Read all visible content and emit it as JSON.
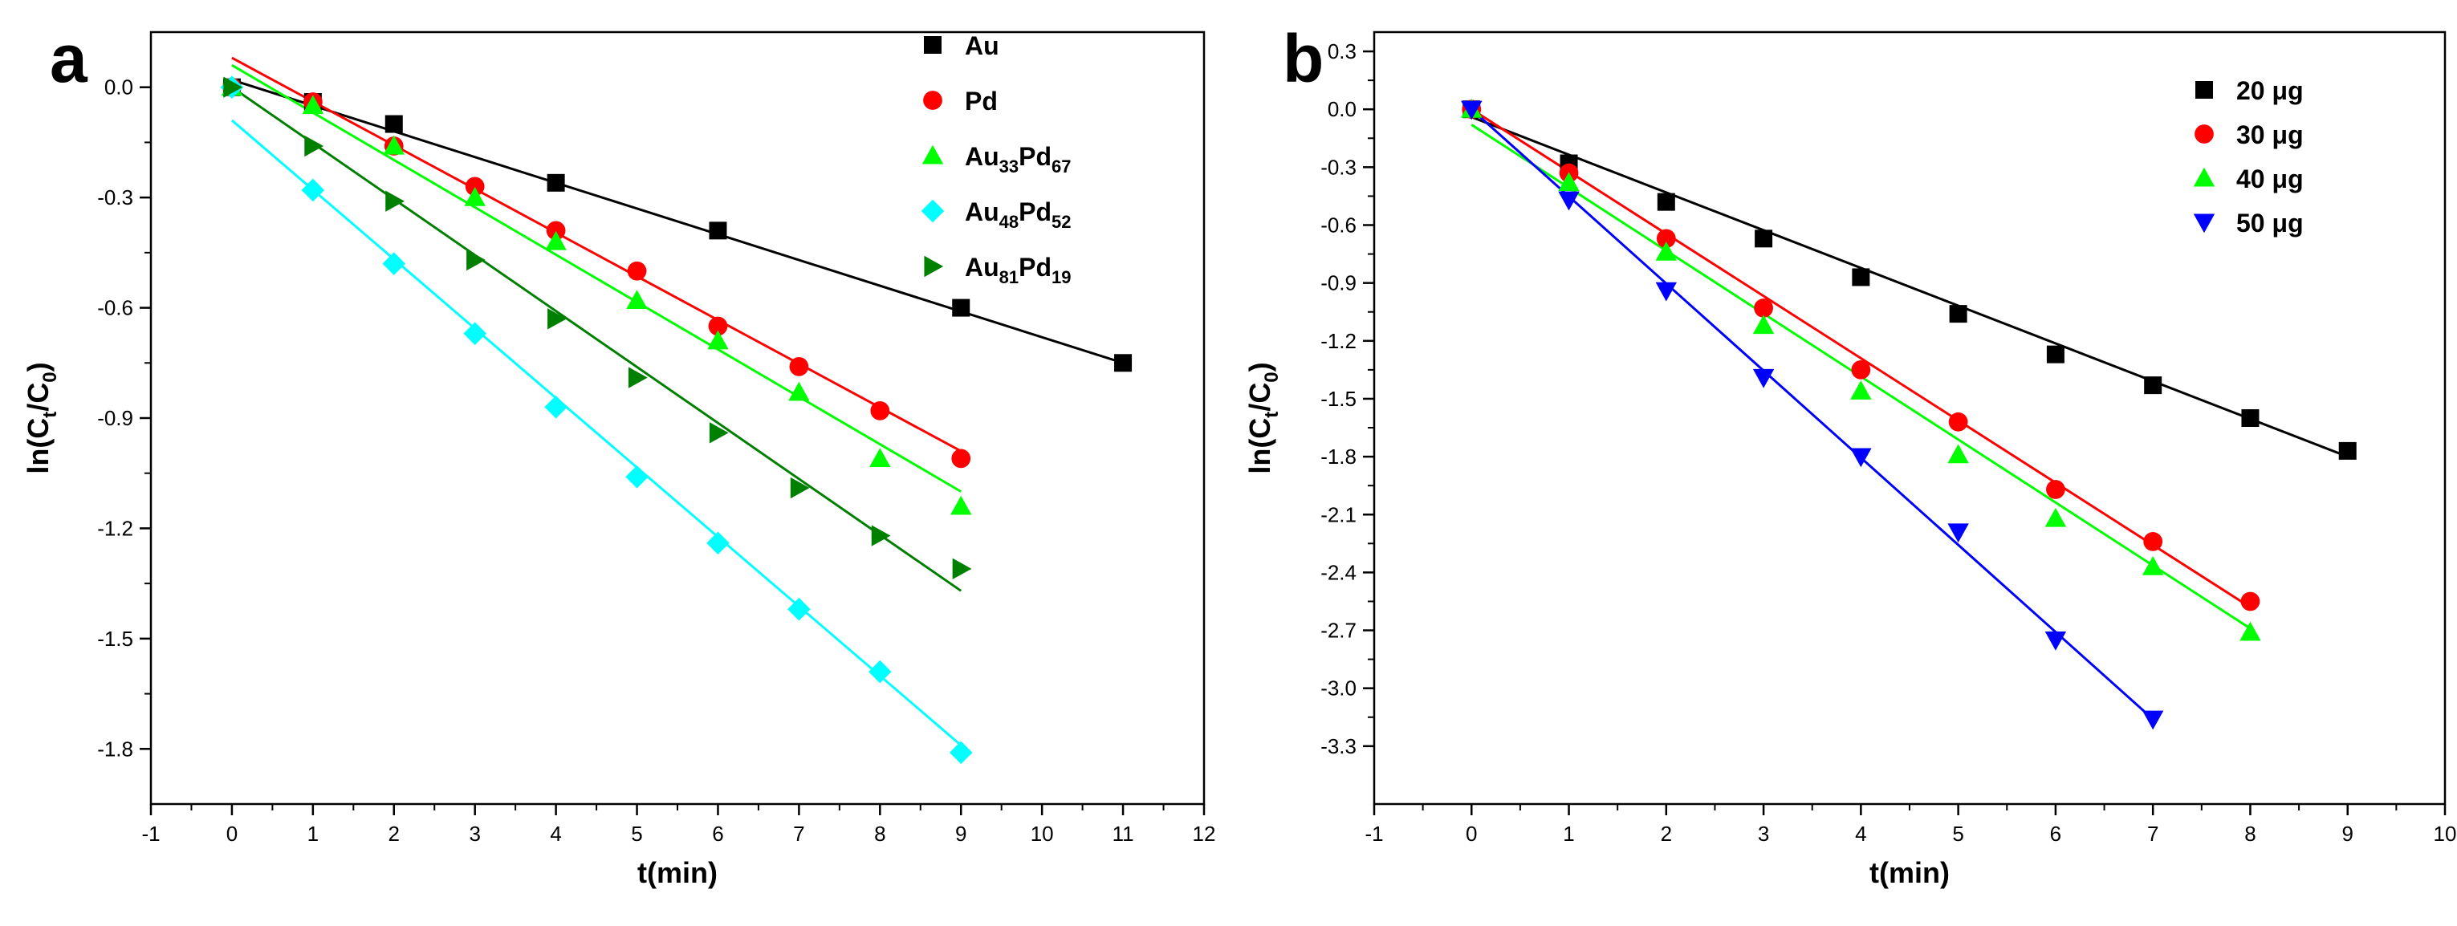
{
  "chart_data": [
    {
      "panel_label": "a",
      "type": "scatter",
      "xlabel": "t(min)",
      "ylabel": {
        "base": "ln(C",
        "sub1": "t",
        "mid": "/C",
        "sub2": "0",
        "end": ")"
      },
      "xlim": [
        -1,
        12
      ],
      "ylim": [
        -1.95,
        0.15
      ],
      "xticks": [
        -1,
        0,
        1,
        2,
        3,
        4,
        5,
        6,
        7,
        8,
        9,
        10,
        11,
        12
      ],
      "yticks": [
        0.0,
        -0.3,
        -0.6,
        -0.9,
        -1.2,
        -1.5,
        -1.8
      ],
      "ytick_labels": [
        "0.0",
        "-0.3",
        "-0.6",
        "-0.9",
        "-1.2",
        "-1.5",
        "-1.8"
      ],
      "legend_position": "top-right",
      "series": [
        {
          "name": "Au",
          "label_base": "Au",
          "marker": "square",
          "color": "#000000",
          "x": [
            0,
            1,
            2,
            4,
            6,
            9,
            11
          ],
          "y": [
            0.0,
            -0.04,
            -0.1,
            -0.26,
            -0.39,
            -0.6,
            -0.75
          ],
          "fit": {
            "x": [
              0,
              11
            ],
            "y": [
              0.02,
              -0.75
            ]
          }
        },
        {
          "name": "Pd",
          "label_base": "Pd",
          "marker": "circle",
          "color": "#ff0000",
          "x": [
            0,
            1,
            2,
            3,
            4,
            5,
            6,
            7,
            8,
            9
          ],
          "y": [
            0.0,
            -0.04,
            -0.16,
            -0.27,
            -0.39,
            -0.5,
            -0.65,
            -0.76,
            -0.88,
            -1.01
          ],
          "fit": {
            "x": [
              0,
              9
            ],
            "y": [
              0.08,
              -0.99
            ]
          }
        },
        {
          "name": "Au33Pd67",
          "label_base": "Au",
          "label_sub1": "33",
          "label_mid": "Pd",
          "label_sub2": "67",
          "marker": "triangle-up",
          "color": "#00ff00",
          "x": [
            0,
            1,
            2,
            3,
            4,
            5,
            6,
            7,
            8,
            9
          ],
          "y": [
            0.0,
            -0.05,
            -0.16,
            -0.3,
            -0.42,
            -0.58,
            -0.69,
            -0.83,
            -1.01,
            -1.14
          ],
          "fit": {
            "x": [
              0,
              9
            ],
            "y": [
              0.06,
              -1.1
            ]
          }
        },
        {
          "name": "Au48Pd52",
          "label_base": "Au",
          "label_sub1": "48",
          "label_mid": "Pd",
          "label_sub2": "52",
          "marker": "diamond",
          "color": "#00ffff",
          "x": [
            0,
            1,
            2,
            3,
            4,
            5,
            6,
            7,
            8,
            9
          ],
          "y": [
            0.0,
            -0.28,
            -0.48,
            -0.67,
            -0.87,
            -1.06,
            -1.24,
            -1.42,
            -1.59,
            -1.81
          ],
          "fit": {
            "x": [
              0,
              9
            ],
            "y": [
              -0.09,
              -1.79
            ]
          }
        },
        {
          "name": "Au81Pd19",
          "label_base": "Au",
          "label_sub1": "81",
          "label_mid": "Pd",
          "label_sub2": "19",
          "marker": "triangle-right",
          "color": "#008000",
          "x": [
            0,
            1,
            2,
            3,
            4,
            5,
            6,
            7,
            8,
            9
          ],
          "y": [
            0.0,
            -0.16,
            -0.31,
            -0.47,
            -0.63,
            -0.79,
            -0.94,
            -1.09,
            -1.22,
            -1.31
          ],
          "fit": {
            "x": [
              0,
              9
            ],
            "y": [
              0.0,
              -1.37
            ]
          }
        }
      ]
    },
    {
      "panel_label": "b",
      "type": "scatter",
      "xlabel": "t(min)",
      "ylabel": {
        "base": "ln(C",
        "sub1": "t",
        "mid": "/C",
        "sub2": "0",
        "end": ")"
      },
      "xlim": [
        -1,
        10
      ],
      "ylim": [
        -3.6,
        0.4
      ],
      "xticks": [
        -1,
        0,
        1,
        2,
        3,
        4,
        5,
        6,
        7,
        8,
        9,
        10
      ],
      "yticks": [
        0.3,
        0.0,
        -0.3,
        -0.6,
        -0.9,
        -1.2,
        -1.5,
        -1.8,
        -2.1,
        -2.4,
        -2.7,
        -3.0,
        -3.3
      ],
      "ytick_labels": [
        "0.3",
        "0.0",
        "-0.3",
        "-0.6",
        "-0.9",
        "-1.2",
        "-1.5",
        "-1.8",
        "-2.1",
        "-2.4",
        "-2.7",
        "-3.0",
        "-3.3"
      ],
      "legend_position": "top-right",
      "series": [
        {
          "name": "20 μg",
          "label_base": "20 μg",
          "marker": "square",
          "color": "#000000",
          "x": [
            0,
            1,
            2,
            3,
            4,
            5,
            6,
            7,
            8,
            9
          ],
          "y": [
            0.0,
            -0.28,
            -0.48,
            -0.67,
            -0.87,
            -1.06,
            -1.27,
            -1.43,
            -1.6,
            -1.77
          ],
          "fit": {
            "x": [
              0,
              9
            ],
            "y": [
              -0.04,
              -1.8
            ]
          }
        },
        {
          "name": "30 μg",
          "label_base": "30 μg",
          "marker": "circle",
          "color": "#ff0000",
          "x": [
            0,
            1,
            2,
            3,
            4,
            5,
            6,
            7,
            8
          ],
          "y": [
            0.0,
            -0.33,
            -0.67,
            -1.03,
            -1.35,
            -1.62,
            -1.97,
            -2.24,
            -2.55
          ],
          "fit": {
            "x": [
              0,
              8
            ],
            "y": [
              0.0,
              -2.58
            ]
          }
        },
        {
          "name": "40 μg",
          "label_base": "40 μg",
          "marker": "triangle-up",
          "color": "#00ff00",
          "x": [
            0,
            1,
            2,
            3,
            4,
            5,
            6,
            7,
            8
          ],
          "y": [
            0.0,
            -0.38,
            -0.74,
            -1.12,
            -1.46,
            -1.79,
            -2.12,
            -2.37,
            -2.71
          ],
          "fit": {
            "x": [
              0,
              8
            ],
            "y": [
              -0.08,
              -2.69
            ]
          }
        },
        {
          "name": "50 μg",
          "label_base": "50 μg",
          "marker": "triangle-down",
          "color": "#0000ff",
          "x": [
            0,
            1,
            2,
            3,
            4,
            5,
            6,
            7
          ],
          "y": [
            0.0,
            -0.47,
            -0.94,
            -1.39,
            -1.8,
            -2.19,
            -2.75,
            -3.16
          ],
          "fit": {
            "x": [
              0,
              7
            ],
            "y": [
              0.0,
              -3.16
            ]
          }
        }
      ]
    }
  ]
}
